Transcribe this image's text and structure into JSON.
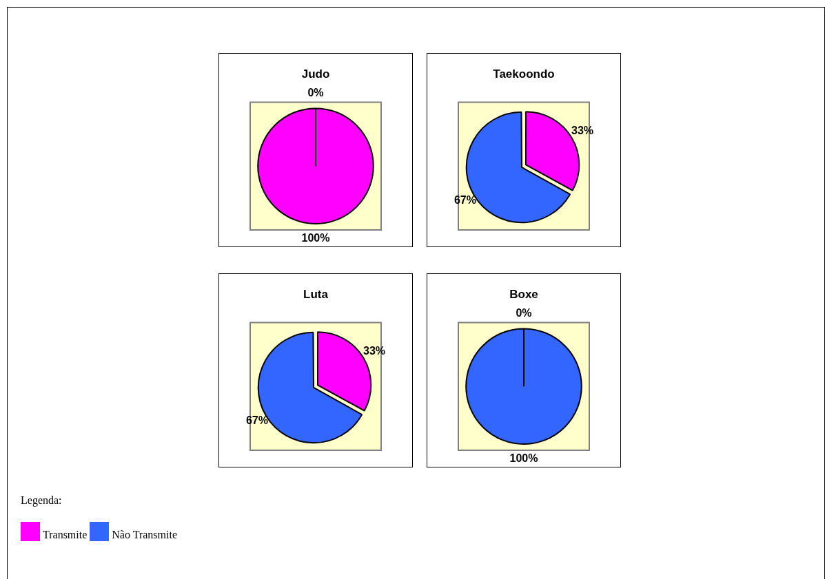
{
  "chart_data": [
    {
      "type": "pie",
      "title": "Judo",
      "categories": [
        "Transmite",
        "Não Transmite"
      ],
      "values": [
        100,
        0
      ],
      "colors": [
        "#ff00ff",
        "#3366ff"
      ],
      "value_labels": [
        "100%",
        "0%"
      ],
      "legend": "bottom",
      "legend_title": "Legenda:"
    },
    {
      "type": "pie",
      "title": "Taekoondo",
      "categories": [
        null,
        null
      ],
      "values": [
        33,
        67
      ],
      "colors": [
        "#ff00ff",
        "#3366ff"
      ],
      "value_labels": [
        "33%",
        "67%"
      ]
    },
    {
      "type": "pie",
      "title": "Luta",
      "categories": [
        null,
        null
      ],
      "values": [
        33,
        67
      ],
      "colors": [
        "#ff00ff",
        "#3366ff"
      ],
      "value_labels": [
        "33%",
        "67%"
      ]
    },
    {
      "type": "pie",
      "title": "Boxe",
      "categories": [
        null,
        null
      ],
      "values": [
        0,
        100
      ],
      "colors": [
        "#ff00ff",
        "#3366ff"
      ],
      "value_labels": [
        "0%",
        "100%"
      ]
    }
  ]
}
